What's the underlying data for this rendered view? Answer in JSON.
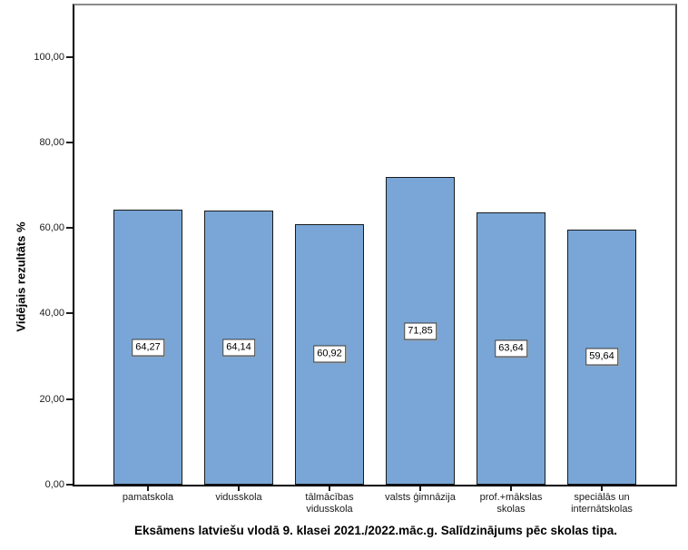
{
  "chart_data": {
    "type": "bar",
    "title": "Eksāmens latviešu vlodā 9. klasei 2021./2022.māc.g. Salīdzinājums pēc skolas tipa.",
    "ylabel": "Vidējais rezultāts %",
    "xlabel": "",
    "categories": [
      "pamatskola",
      "vidusskola",
      "tālmācības vidusskola",
      "valsts ģimnāzija",
      "prof.+mākslas skolas",
      "speciālās un internātskolas"
    ],
    "category_lines": [
      [
        "pamatskola"
      ],
      [
        "vidusskola"
      ],
      [
        "tālmācības",
        "vidusskola"
      ],
      [
        "valsts ģimnāzija"
      ],
      [
        "prof.+mākslas",
        "skolas"
      ],
      [
        "speciālās un",
        "internātskolas"
      ]
    ],
    "values": [
      64.27,
      64.14,
      60.92,
      71.85,
      63.64,
      59.64
    ],
    "value_labels": [
      "64,27",
      "64,14",
      "60,92",
      "71,85",
      "63,64",
      "59,64"
    ],
    "ylim": [
      0,
      112
    ],
    "yticks": [
      0,
      20,
      40,
      60,
      80,
      100
    ],
    "ytick_labels": [
      "0,00",
      "20,00",
      "40,00",
      "60,00",
      "80,00",
      "100,00"
    ],
    "grid": false,
    "legend": null,
    "colors": {
      "bar_fill": "#79A6D6",
      "bar_border": "#1a1a1a",
      "axis": "#000000",
      "frame": "#8c8c8c",
      "background": "#ffffff"
    }
  }
}
